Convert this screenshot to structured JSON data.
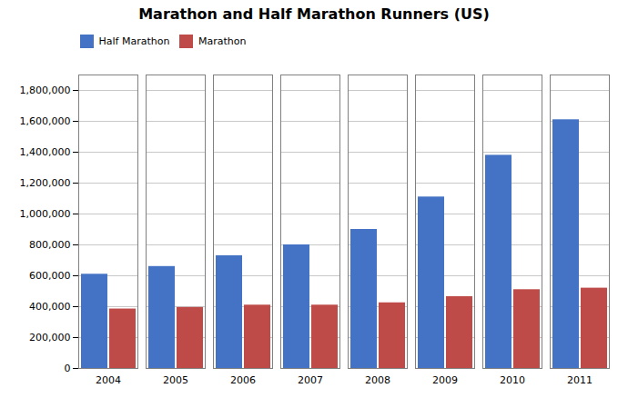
{
  "chart_data": {
    "type": "bar",
    "title": "Marathon and Half Marathon Runners (US)",
    "categories": [
      "2004",
      "2005",
      "2006",
      "2007",
      "2008",
      "2009",
      "2010",
      "2011"
    ],
    "series": [
      {
        "name": "Half Marathon",
        "color": "#4472C4",
        "values": [
          610000,
          660000,
          730000,
          800000,
          900000,
          1110000,
          1380000,
          1610000
        ]
      },
      {
        "name": "Marathon",
        "color": "#BE4B48",
        "values": [
          385000,
          395000,
          410000,
          410000,
          425000,
          465000,
          510000,
          520000
        ]
      }
    ],
    "ylim": [
      0,
      1900000
    ],
    "yticks": [
      0,
      {
        "value": 200000,
        "label": "200,000"
      },
      {
        "value": 400000,
        "label": "400,000"
      },
      {
        "value": 600000,
        "label": "600,000"
      },
      {
        "value": 800000,
        "label": "800,000"
      },
      {
        "value": 1000000,
        "label": "1,000,000"
      },
      {
        "value": 1200000,
        "label": "1,200,000"
      },
      {
        "value": 1400000,
        "label": "1,400,000"
      },
      {
        "value": 1600000,
        "label": "1,600,000"
      },
      {
        "value": 1800000,
        "label": "1,800,000"
      }
    ],
    "grid": true,
    "legend": "upper left"
  }
}
